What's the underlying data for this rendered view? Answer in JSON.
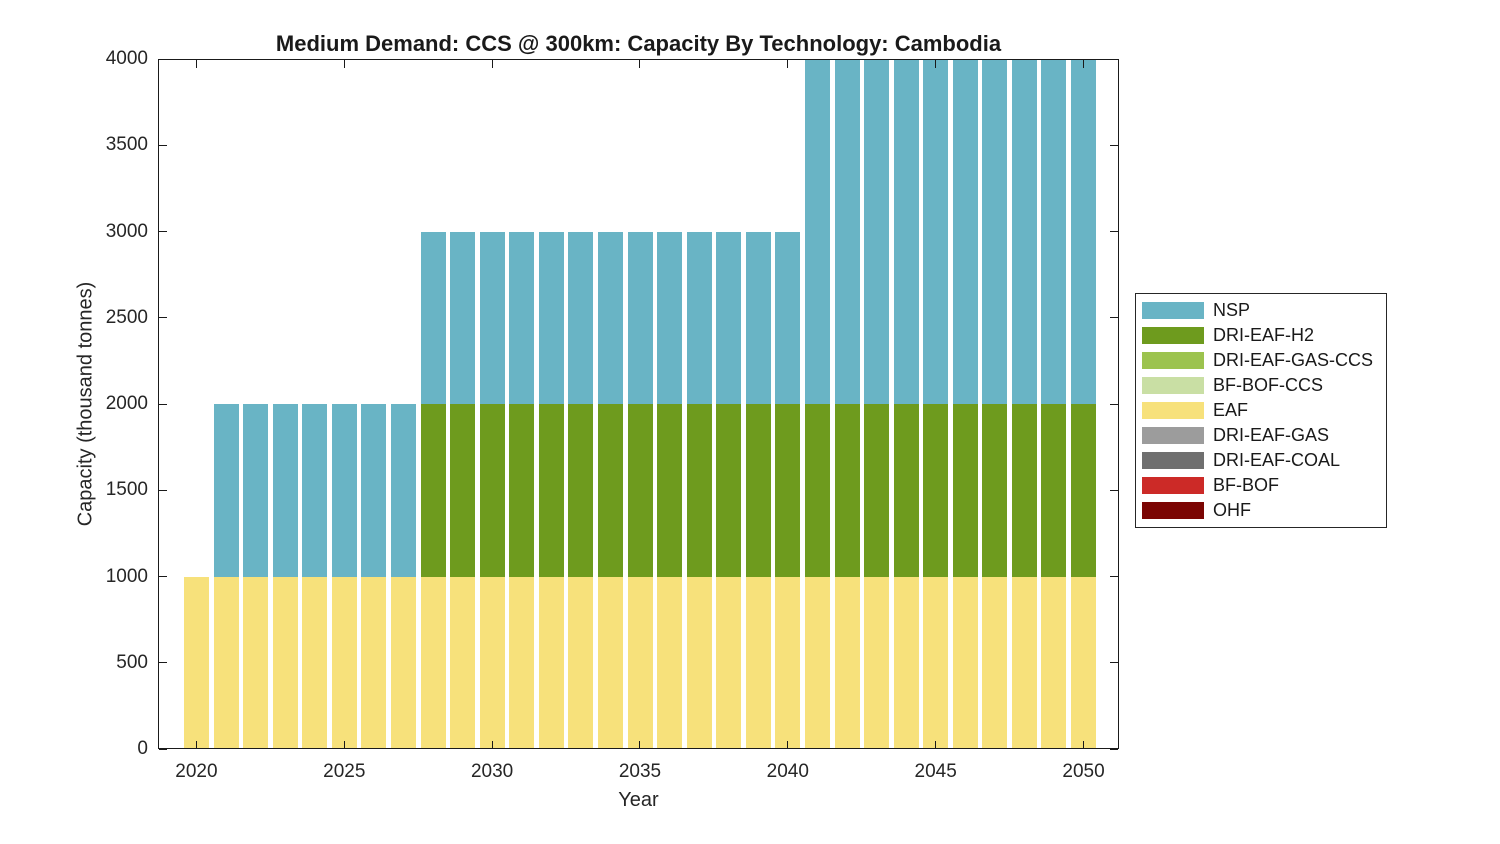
{
  "figure": {
    "background": "#FFFFFF"
  },
  "chart_data": {
    "type": "bar",
    "stacked": true,
    "title": "Medium Demand: CCS @ 300km: Capacity By Technology: Cambodia",
    "xlabel": "Year",
    "ylabel": "Capacity (thousand tonnes)",
    "grid": false,
    "legend_position": "right-outside",
    "axis_color": "#1A1A1A",
    "text_color": "#262626",
    "xlim": [
      2018.7,
      2051.2
    ],
    "ylim": [
      0,
      4000
    ],
    "xticks": [
      2020,
      2025,
      2030,
      2035,
      2040,
      2045,
      2050
    ],
    "yticks": [
      0,
      500,
      1000,
      1500,
      2000,
      2500,
      3000,
      3500,
      4000
    ],
    "x": [
      2020,
      2021,
      2022,
      2023,
      2024,
      2025,
      2026,
      2027,
      2028,
      2029,
      2030,
      2031,
      2032,
      2033,
      2034,
      2035,
      2036,
      2037,
      2038,
      2039,
      2040,
      2041,
      2042,
      2043,
      2044,
      2045,
      2046,
      2047,
      2048,
      2049,
      2050
    ],
    "series": [
      {
        "name": "EAF",
        "color": "#F7E17B",
        "values": [
          1000,
          1000,
          1000,
          1000,
          1000,
          1000,
          1000,
          1000,
          1000,
          1000,
          1000,
          1000,
          1000,
          1000,
          1000,
          1000,
          1000,
          1000,
          1000,
          1000,
          1000,
          1000,
          1000,
          1000,
          1000,
          1000,
          1000,
          1000,
          1000,
          1000,
          1000
        ]
      },
      {
        "name": "DRI-EAF-H2",
        "color": "#6E9B1E",
        "values": [
          0,
          0,
          0,
          0,
          0,
          0,
          0,
          0,
          1000,
          1000,
          1000,
          1000,
          1000,
          1000,
          1000,
          1000,
          1000,
          1000,
          1000,
          1000,
          1000,
          1000,
          1000,
          1000,
          1000,
          1000,
          1000,
          1000,
          1000,
          1000,
          1000
        ]
      },
      {
        "name": "NSP",
        "color": "#69B4C5",
        "values": [
          0,
          1000,
          1000,
          1000,
          1000,
          1000,
          1000,
          1000,
          1000,
          1000,
          1000,
          1000,
          1000,
          1000,
          1000,
          1000,
          1000,
          1000,
          1000,
          1000,
          1000,
          2000,
          2000,
          2000,
          2000,
          2000,
          2000,
          2000,
          2000,
          2000,
          2000
        ]
      }
    ],
    "legend": [
      {
        "label": "NSP",
        "color": "#69B4C5"
      },
      {
        "label": "DRI-EAF-H2",
        "color": "#6E9B1E"
      },
      {
        "label": "DRI-EAF-GAS-CCS",
        "color": "#9CC34E"
      },
      {
        "label": "BF-BOF-CCS",
        "color": "#C9DFA4"
      },
      {
        "label": "EAF",
        "color": "#F7E17B"
      },
      {
        "label": "DRI-EAF-GAS",
        "color": "#9C9C9C"
      },
      {
        "label": "DRI-EAF-COAL",
        "color": "#6F6F6F"
      },
      {
        "label": "BF-BOF",
        "color": "#CC2A27"
      },
      {
        "label": "OHF",
        "color": "#7B0503"
      }
    ]
  }
}
